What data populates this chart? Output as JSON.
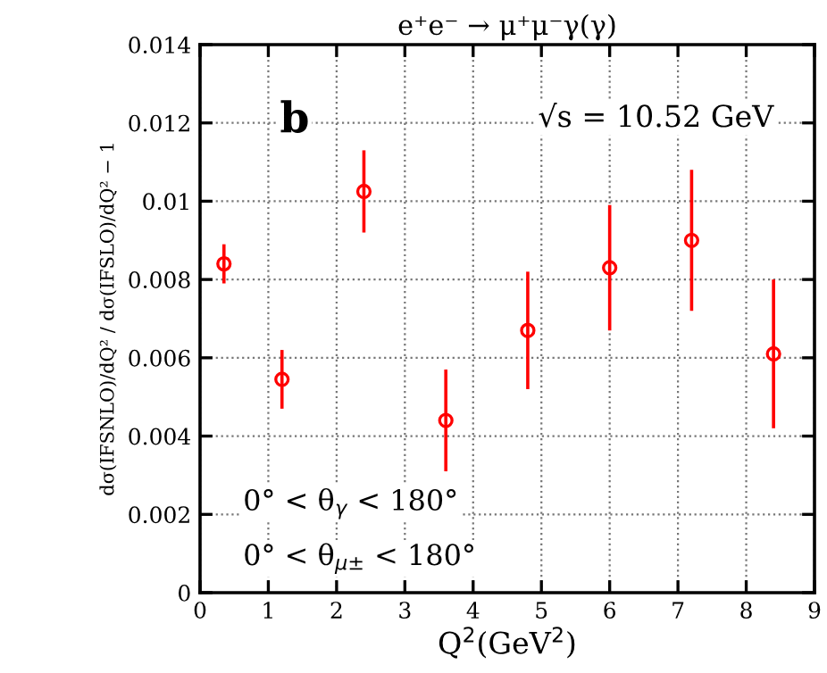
{
  "chart_data": {
    "type": "scatter",
    "title": "e⁺e⁻ → μ⁺μ⁻γ(γ)",
    "xlabel": "Q$^{2}$(GeV$^{2}$)",
    "ylabel": "dσ(IFSNLO)/dQ² / dσ(IFSLO)/dQ² − 1",
    "x": [
      0.35,
      1.2,
      2.4,
      3.6,
      4.8,
      6.0,
      7.2,
      8.4
    ],
    "series": [
      {
        "color": "#ff0000",
        "values": [
          0.0084,
          0.00545,
          0.01025,
          0.0044,
          0.0067,
          0.0083,
          0.009,
          0.0061
        ],
        "errors": [
          0.0005,
          0.00075,
          0.00105,
          0.0013,
          0.0015,
          0.0016,
          0.0018,
          0.0019
        ]
      }
    ],
    "xlim": [
      0,
      9
    ],
    "xticks": [
      0,
      1,
      2,
      3,
      4,
      5,
      6,
      7,
      8,
      9
    ],
    "ylim": [
      0,
      0.014
    ],
    "yticks": [
      0,
      0.002,
      0.004,
      0.006,
      0.008,
      0.01,
      0.012,
      0.014
    ],
    "grid": true,
    "marker": "circle",
    "legend": false,
    "annotations": [
      "b",
      "√s = 10.52 GeV",
      "0° < θ$_{γ}$ < 180°",
      "0° < θ$_{μ±}$ < 180°"
    ]
  }
}
